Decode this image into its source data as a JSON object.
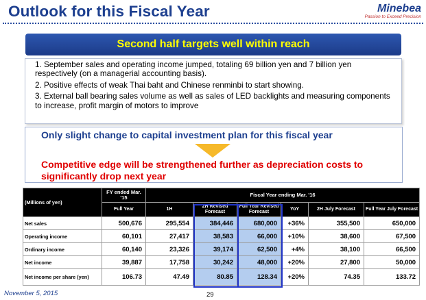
{
  "header": {
    "title": "Outlook for this Fiscal Year",
    "logo_name": "Minebea",
    "logo_tagline": "Passion to Exceed Precision"
  },
  "banner": {
    "text": "Second half targets well within reach"
  },
  "points": [
    "1. September sales and operating income jumped, totaling 69 billion yen and 7 billion yen respectively (on a managerial accounting basis).",
    "2. Positive effects of weak Thai baht and Chinese renminbi to start showing.",
    "3. External ball bearing sales volume as well as sales of LED backlights and measuring components to increase, profit margin of motors to improve"
  ],
  "capex": {
    "line1": "Only slight change to capital investment plan for this fiscal year",
    "line2": "Competitive edge will be strengthened further as depreciation costs to significantly drop next year"
  },
  "table": {
    "unit_label": "(Millions of yen)",
    "prior_period": "FY ended Mar. '15",
    "current_period": "Fiscal Year ending Mar. '16",
    "columns": [
      "Full Year",
      "1H",
      "2H Revised Forecast",
      "Full Year Revised Forecast",
      "YoY",
      "2H July Forecast",
      "Full Year July Forecast"
    ],
    "rows": [
      {
        "label": "Net sales",
        "values": [
          "500,676",
          "295,554",
          "384,446",
          "680,000",
          "+36%",
          "355,500",
          "650,000"
        ]
      },
      {
        "label": "Operating income",
        "values": [
          "60,101",
          "27,417",
          "38,583",
          "66,000",
          "+10%",
          "38,600",
          "67,500"
        ]
      },
      {
        "label": "Ordinary income",
        "values": [
          "60,140",
          "23,326",
          "39,174",
          "62,500",
          "+4%",
          "38,100",
          "66,500"
        ]
      },
      {
        "label": "Net income",
        "values": [
          "39,887",
          "17,758",
          "30,242",
          "48,000",
          "+20%",
          "27,800",
          "50,000"
        ]
      },
      {
        "label": "Net income per share (yen)",
        "values": [
          "106.73",
          "47.49",
          "80.85",
          "128.34",
          "+20%",
          "74.35",
          "133.72"
        ]
      }
    ]
  },
  "footer": {
    "date": "November 5, 2015",
    "page": "29"
  },
  "colors": {
    "title_blue": "#1d3f8f",
    "banner_text": "#ffff00",
    "alert_red": "#e00000",
    "arrow_orange": "#f6b92a",
    "highlight_blue": "#b4cdef",
    "highlight_border": "#1f33c8"
  },
  "icons": {
    "arrow": "down-triangle-icon"
  }
}
